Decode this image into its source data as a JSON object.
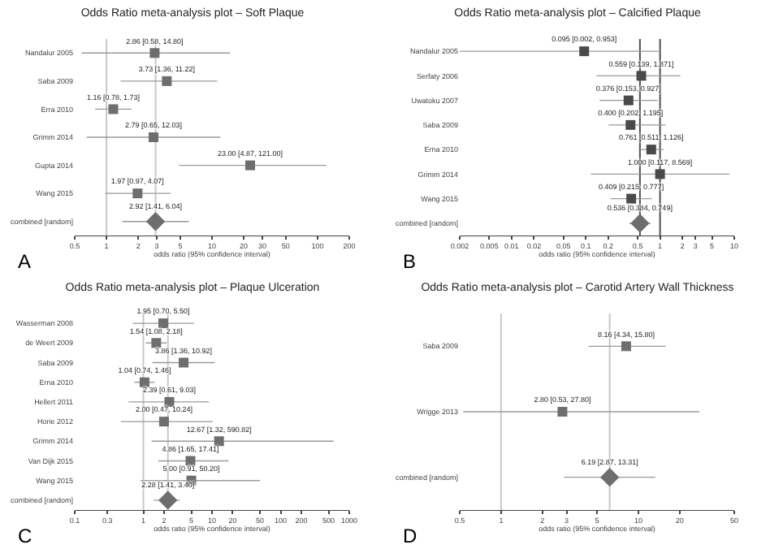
{
  "chart_data": [
    {
      "type": "scatter",
      "title": "Odds Ratio meta-analysis plot – Soft Plaque",
      "xlabel": "odds ratio (95% confidence interval)",
      "orientation": "horizontal",
      "log": "x",
      "annotations": [
        "A"
      ],
      "categories": [
        "Nandalur 2005",
        "Saba 2009",
        "Erra 2010",
        "Grimm 2014",
        "Gupta 2014",
        "Wang 2015",
        "combined [random]"
      ],
      "xlim": [
        0.5,
        200
      ],
      "xticks": [
        0.5,
        1,
        2,
        3,
        5,
        10,
        20,
        30,
        50,
        100,
        200
      ],
      "ref_lines": [
        {
          "axis": "x",
          "value": 1,
          "color": "#c8c8c8"
        },
        {
          "axis": "x",
          "value": 2.92,
          "color": "#c8c8c8"
        }
      ],
      "series": [
        {
          "color": "#6e6e6e",
          "marker": "square",
          "values": [
            2.86,
            3.73,
            1.16,
            2.79,
            23.0,
            1.97,
            null
          ],
          "errors": [
            [
              0.58,
              14.8
            ],
            [
              1.36,
              11.22
            ],
            [
              0.78,
              1.73
            ],
            [
              0.65,
              12.03
            ],
            [
              4.87,
              121.0
            ],
            [
              0.97,
              4.07
            ],
            null
          ],
          "value_labels": [
            "2.86 [0.58, 14.80]",
            "3.73 [1.36, 11.22]",
            "1.16 [0.78, 1.73]",
            "2.79 [0.65, 12.03]",
            "23.00 [4.87, 121.00]",
            "1.97 [0.97, 4.07]",
            null
          ]
        },
        {
          "color": "#6e6e6e",
          "marker": "diamond",
          "values": [
            null,
            null,
            null,
            null,
            null,
            null,
            2.92
          ],
          "errors": [
            null,
            null,
            null,
            null,
            null,
            null,
            [
              1.41,
              6.04
            ]
          ],
          "value_labels": [
            null,
            null,
            null,
            null,
            null,
            null,
            "2.92 [1.41, 6.04]"
          ]
        }
      ]
    },
    {
      "type": "scatter",
      "title": "Odds Ratio meta-analysis plot – Calcified Plaque",
      "xlabel": "odds ratio (95% confidence interval)",
      "orientation": "horizontal",
      "log": "x",
      "annotations": [
        "B"
      ],
      "categories": [
        "Nandalur 2005",
        "Serfaty 2006",
        "Uwatoku 2007",
        "Saba 2009",
        "Erna 2010",
        "Grimm 2014",
        "Wang 2015",
        "combined [random]"
      ],
      "xlim": [
        0.002,
        10
      ],
      "xticks": [
        0.002,
        0.005,
        0.01,
        0.02,
        0.05,
        0.1,
        0.2,
        0.5,
        1,
        2,
        3,
        5,
        10
      ],
      "ref_lines": [
        {
          "axis": "x",
          "value": 1,
          "color": "#505050"
        },
        {
          "axis": "x",
          "value": 0.536,
          "color": "#505050"
        }
      ],
      "series": [
        {
          "color": "#4a4a4a",
          "marker": "square",
          "values": [
            0.095,
            0.559,
            0.376,
            0.4,
            0.761,
            1.0,
            0.409,
            null
          ],
          "errors": [
            [
              0.002,
              0.953
            ],
            [
              0.139,
              1.871
            ],
            [
              0.153,
              0.927
            ],
            [
              0.202,
              1.195
            ],
            [
              0.511,
              1.126
            ],
            [
              0.117,
              8.569
            ],
            [
              0.215,
              0.777
            ],
            null
          ],
          "value_labels": [
            "0.095 [0.002, 0.953]",
            "0.559 [0.139, 1.871]",
            "0.376 [0.153, 0.927]",
            "0.400 [0.202, 1.195]",
            "0.761 [0.511, 1.126]",
            "1.000 [0.117, 8.569]",
            "0.409 [0.215, 0.777]",
            null
          ]
        },
        {
          "color": "#6e6e6e",
          "marker": "diamond",
          "values": [
            null,
            null,
            null,
            null,
            null,
            null,
            null,
            0.536
          ],
          "errors": [
            null,
            null,
            null,
            null,
            null,
            null,
            null,
            [
              0.384,
              0.749
            ]
          ],
          "value_labels": [
            null,
            null,
            null,
            null,
            null,
            null,
            null,
            "0.536 [0.384, 0.749]"
          ]
        }
      ]
    },
    {
      "type": "scatter",
      "title": "Odds Ratio meta-analysis plot – Plaque Ulceration",
      "xlabel": "odds ratio (95% confidence interval)",
      "orientation": "horizontal",
      "log": "x",
      "annotations": [
        "C"
      ],
      "categories": [
        "Wasserman 2008",
        "de Weert 2009",
        "Saba 2009",
        "Erna 2010",
        "Hellert 2011",
        "Horie 2012",
        "Grimm 2014",
        "Van Dijk 2015",
        "Wang 2015",
        "combined [random]"
      ],
      "xlim": [
        0.1,
        1000
      ],
      "xticks": [
        0.1,
        0.3,
        1,
        2,
        5,
        10,
        20,
        50,
        100,
        200,
        500,
        1000
      ],
      "ref_lines": [
        {
          "axis": "x",
          "value": 1,
          "color": "#c8c8c8"
        },
        {
          "axis": "x",
          "value": 2.28,
          "color": "#c8c8c8"
        }
      ],
      "series": [
        {
          "color": "#6e6e6e",
          "marker": "square",
          "values": [
            1.95,
            1.54,
            3.86,
            1.04,
            2.39,
            2.0,
            12.67,
            4.86,
            5.0,
            null
          ],
          "errors": [
            [
              0.7,
              5.5
            ],
            [
              1.08,
              2.18
            ],
            [
              1.36,
              10.92
            ],
            [
              0.74,
              1.46
            ],
            [
              0.61,
              9.03
            ],
            [
              0.47,
              10.24
            ],
            [
              1.32,
              590.82
            ],
            [
              1.65,
              17.41
            ],
            [
              0.91,
              50.2
            ],
            null
          ],
          "value_labels": [
            "1.95 [0.70, 5.50]",
            "1.54 [1.08, 2.18]",
            "3.86 [1.36, 10.92]",
            "1.04 [0.74, 1.46]",
            "2.39 [0.61, 9.03]",
            "2.00 [0.47, 10.24]",
            "12.67 [1.32, 590.82]",
            "4.86 [1.65, 17.41]",
            "5.00 [0.91, 50.20]",
            null
          ]
        },
        {
          "color": "#6e6e6e",
          "marker": "diamond",
          "values": [
            null,
            null,
            null,
            null,
            null,
            null,
            null,
            null,
            null,
            2.28
          ],
          "errors": [
            null,
            null,
            null,
            null,
            null,
            null,
            null,
            null,
            null,
            [
              1.41,
              3.4
            ]
          ],
          "value_labels": [
            null,
            null,
            null,
            null,
            null,
            null,
            null,
            null,
            null,
            "2.28 [1.41, 3.40]"
          ]
        }
      ]
    },
    {
      "type": "scatter",
      "title": "Odds Ratio meta-analysis plot – Carotid Artery Wall Thickness",
      "xlabel": "odds ratio (95% confidence interval)",
      "orientation": "horizontal",
      "log": "x",
      "annotations": [
        "D"
      ],
      "categories": [
        "Saba 2009",
        "Wrigge 2013",
        "combined [random]"
      ],
      "xlim": [
        0.5,
        50
      ],
      "xticks": [
        0.5,
        1,
        2,
        3,
        5,
        10,
        20,
        50
      ],
      "ref_lines": [
        {
          "axis": "x",
          "value": 1,
          "color": "#c8c8c8"
        },
        {
          "axis": "x",
          "value": 6.19,
          "color": "#c8c8c8"
        }
      ],
      "series": [
        {
          "color": "#6e6e6e",
          "marker": "square",
          "values": [
            8.16,
            2.8,
            null
          ],
          "errors": [
            [
              4.34,
              15.8
            ],
            [
              0.53,
              27.8
            ],
            null
          ],
          "value_labels": [
            "8.16 [4.34, 15.80]",
            "2.80 [0.53, 27.80]",
            null
          ]
        },
        {
          "color": "#6e6e6e",
          "marker": "diamond",
          "values": [
            null,
            null,
            6.19
          ],
          "errors": [
            null,
            null,
            [
              2.87,
              13.31
            ]
          ],
          "value_labels": [
            null,
            null,
            "6.19 [2.87, 13.31]"
          ]
        }
      ]
    }
  ]
}
